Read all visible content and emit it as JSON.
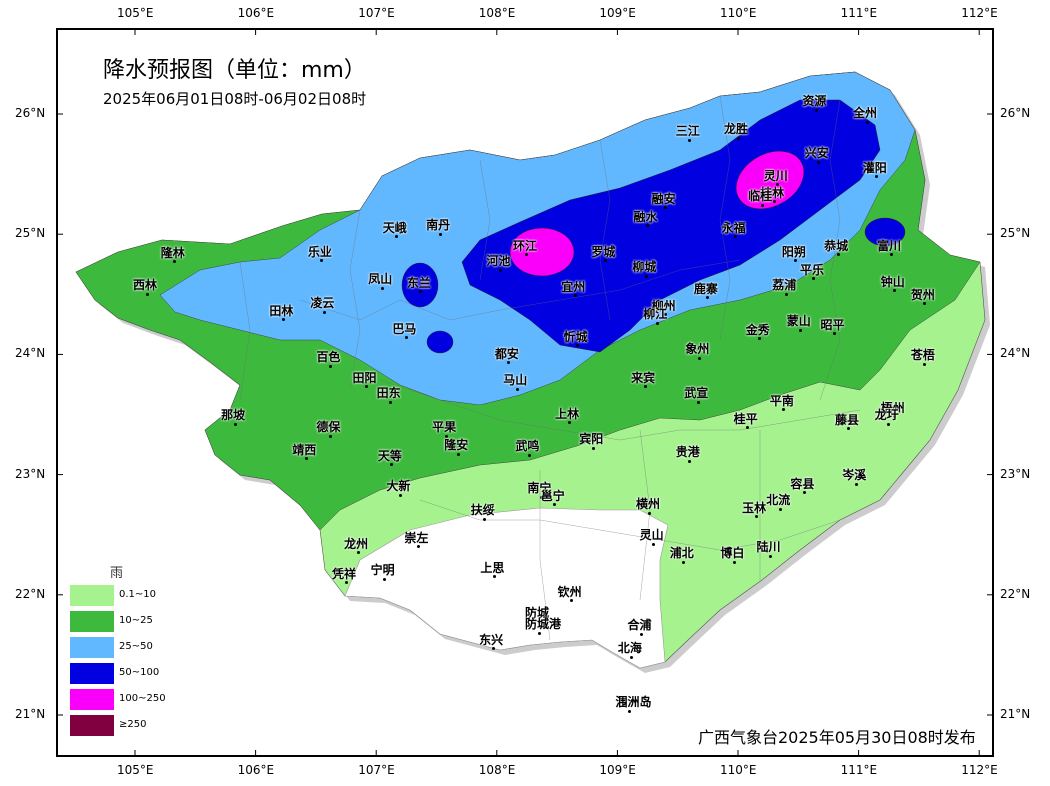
{
  "title": "降水预报图（单位：mm）",
  "subtitle": "2025年06月01日08时-06月02日08时",
  "issuer": "广西气象台2025年05月30日08时发布",
  "axes": {
    "lon_ticks": [
      "105°E",
      "106°E",
      "107°E",
      "108°E",
      "109°E",
      "110°E",
      "111°E",
      "112°E"
    ],
    "lat_ticks": [
      "26°N",
      "25°N",
      "24°N",
      "23°N",
      "22°N",
      "21°N"
    ]
  },
  "legend": {
    "title": "雨",
    "items": [
      {
        "label": "0.1~10",
        "color": "#a6f28f"
      },
      {
        "label": "10~25",
        "color": "#3dba3d"
      },
      {
        "label": "25~50",
        "color": "#61b8ff"
      },
      {
        "label": "50~100",
        "color": "#0000e1"
      },
      {
        "label": "100~250",
        "color": "#fa00fa"
      },
      {
        "label": "≥250",
        "color": "#800040"
      }
    ]
  },
  "cities": [
    {
      "name": "隆林",
      "lon": 105.33,
      "lat": 24.77
    },
    {
      "name": "西林",
      "lon": 105.1,
      "lat": 24.5
    },
    {
      "name": "乐业",
      "lon": 106.55,
      "lat": 24.78
    },
    {
      "name": "天峨",
      "lon": 107.17,
      "lat": 24.98
    },
    {
      "name": "南丹",
      "lon": 107.53,
      "lat": 25.0
    },
    {
      "name": "凤山",
      "lon": 107.05,
      "lat": 24.55
    },
    {
      "name": "东兰",
      "lon": 107.37,
      "lat": 24.52
    },
    {
      "name": "凌云",
      "lon": 106.57,
      "lat": 24.35
    },
    {
      "name": "田林",
      "lon": 106.23,
      "lat": 24.29
    },
    {
      "name": "巴马",
      "lon": 107.25,
      "lat": 24.14
    },
    {
      "name": "百色",
      "lon": 106.62,
      "lat": 23.9
    },
    {
      "name": "田阳",
      "lon": 106.92,
      "lat": 23.73
    },
    {
      "name": "田东",
      "lon": 107.12,
      "lat": 23.6
    },
    {
      "name": "那坡",
      "lon": 105.83,
      "lat": 23.42
    },
    {
      "name": "德保",
      "lon": 106.62,
      "lat": 23.32
    },
    {
      "name": "靖西",
      "lon": 106.42,
      "lat": 23.13
    },
    {
      "name": "天等",
      "lon": 107.13,
      "lat": 23.08
    },
    {
      "name": "平果",
      "lon": 107.58,
      "lat": 23.32
    },
    {
      "name": "隆安",
      "lon": 107.68,
      "lat": 23.17
    },
    {
      "name": "大新",
      "lon": 107.2,
      "lat": 22.83
    },
    {
      "name": "都安",
      "lon": 108.1,
      "lat": 23.93
    },
    {
      "name": "马山",
      "lon": 108.17,
      "lat": 23.71
    },
    {
      "name": "河池",
      "lon": 108.03,
      "lat": 24.7
    },
    {
      "name": "宜州",
      "lon": 108.65,
      "lat": 24.49
    },
    {
      "name": "环江",
      "lon": 108.25,
      "lat": 24.83
    },
    {
      "name": "罗城",
      "lon": 108.9,
      "lat": 24.78
    },
    {
      "name": "融安",
      "lon": 109.4,
      "lat": 25.22
    },
    {
      "name": "融水",
      "lon": 109.25,
      "lat": 25.07
    },
    {
      "name": "柳城",
      "lon": 109.24,
      "lat": 24.65
    },
    {
      "name": "忻城",
      "lon": 108.67,
      "lat": 24.07
    },
    {
      "name": "柳州",
      "lon": 109.4,
      "lat": 24.33
    },
    {
      "name": "柳江",
      "lon": 109.33,
      "lat": 24.26
    },
    {
      "name": "鹿寨",
      "lon": 109.75,
      "lat": 24.47
    },
    {
      "name": "三江",
      "lon": 109.6,
      "lat": 25.78
    },
    {
      "name": "龙胜",
      "lon": 110.0,
      "lat": 25.8
    },
    {
      "name": "资源",
      "lon": 110.65,
      "lat": 26.03
    },
    {
      "name": "全州",
      "lon": 111.07,
      "lat": 25.93
    },
    {
      "name": "兴安",
      "lon": 110.67,
      "lat": 25.6
    },
    {
      "name": "灌阳",
      "lon": 111.15,
      "lat": 25.48
    },
    {
      "name": "灵川",
      "lon": 110.33,
      "lat": 25.41
    },
    {
      "name": "桂林",
      "lon": 110.3,
      "lat": 25.27
    },
    {
      "name": "临桂",
      "lon": 110.2,
      "lat": 25.24
    },
    {
      "name": "永福",
      "lon": 109.98,
      "lat": 24.98
    },
    {
      "name": "阳朔",
      "lon": 110.48,
      "lat": 24.78
    },
    {
      "name": "恭城",
      "lon": 110.83,
      "lat": 24.83
    },
    {
      "name": "平乐",
      "lon": 110.63,
      "lat": 24.63
    },
    {
      "name": "富川",
      "lon": 111.27,
      "lat": 24.83
    },
    {
      "name": "钟山",
      "lon": 111.3,
      "lat": 24.53
    },
    {
      "name": "贺州",
      "lon": 111.55,
      "lat": 24.42
    },
    {
      "name": "荔浦",
      "lon": 110.4,
      "lat": 24.5
    },
    {
      "name": "蒙山",
      "lon": 110.52,
      "lat": 24.2
    },
    {
      "name": "昭平",
      "lon": 110.8,
      "lat": 24.17
    },
    {
      "name": "金秀",
      "lon": 110.18,
      "lat": 24.13
    },
    {
      "name": "象州",
      "lon": 109.68,
      "lat": 23.97
    },
    {
      "name": "来宾",
      "lon": 109.23,
      "lat": 23.73
    },
    {
      "name": "武宣",
      "lon": 109.67,
      "lat": 23.6
    },
    {
      "name": "上林",
      "lon": 108.6,
      "lat": 23.43
    },
    {
      "name": "宾阳",
      "lon": 108.8,
      "lat": 23.22
    },
    {
      "name": "武鸣",
      "lon": 108.27,
      "lat": 23.16
    },
    {
      "name": "桂平",
      "lon": 110.08,
      "lat": 23.39
    },
    {
      "name": "平南",
      "lon": 110.38,
      "lat": 23.54
    },
    {
      "name": "藤县",
      "lon": 110.92,
      "lat": 23.38
    },
    {
      "name": "梧州",
      "lon": 111.3,
      "lat": 23.48
    },
    {
      "name": "龙圩",
      "lon": 111.25,
      "lat": 23.42
    },
    {
      "name": "苍梧",
      "lon": 111.55,
      "lat": 23.92
    },
    {
      "name": "岑溪",
      "lon": 110.98,
      "lat": 22.92
    },
    {
      "name": "贵港",
      "lon": 109.6,
      "lat": 23.11
    },
    {
      "name": "容县",
      "lon": 110.55,
      "lat": 22.85
    },
    {
      "name": "北流",
      "lon": 110.35,
      "lat": 22.71
    },
    {
      "name": "玉林",
      "lon": 110.15,
      "lat": 22.65
    },
    {
      "name": "陆川",
      "lon": 110.27,
      "lat": 22.32
    },
    {
      "name": "博白",
      "lon": 109.97,
      "lat": 22.27
    },
    {
      "name": "横州",
      "lon": 109.27,
      "lat": 22.68
    },
    {
      "name": "南宁",
      "lon": 108.37,
      "lat": 22.81
    },
    {
      "name": "邕宁",
      "lon": 108.48,
      "lat": 22.75
    },
    {
      "name": "灵山",
      "lon": 109.3,
      "lat": 22.42
    },
    {
      "name": "浦北",
      "lon": 109.55,
      "lat": 22.27
    },
    {
      "name": "扶绥",
      "lon": 107.9,
      "lat": 22.63
    },
    {
      "name": "崇左",
      "lon": 107.35,
      "lat": 22.4
    },
    {
      "name": "龙州",
      "lon": 106.85,
      "lat": 22.35
    },
    {
      "name": "凭祥",
      "lon": 106.75,
      "lat": 22.1
    },
    {
      "name": "宁明",
      "lon": 107.07,
      "lat": 22.13
    },
    {
      "name": "上思",
      "lon": 107.98,
      "lat": 22.15
    },
    {
      "name": "钦州",
      "lon": 108.62,
      "lat": 21.95
    },
    {
      "name": "防城",
      "lon": 108.35,
      "lat": 21.77
    },
    {
      "name": "防城港",
      "lon": 108.35,
      "lat": 21.68
    },
    {
      "name": "东兴",
      "lon": 107.97,
      "lat": 21.55
    },
    {
      "name": "合浦",
      "lon": 109.2,
      "lat": 21.67
    },
    {
      "name": "北海",
      "lon": 109.12,
      "lat": 21.48
    },
    {
      "name": "涠洲岛",
      "lon": 109.1,
      "lat": 21.03
    }
  ]
}
